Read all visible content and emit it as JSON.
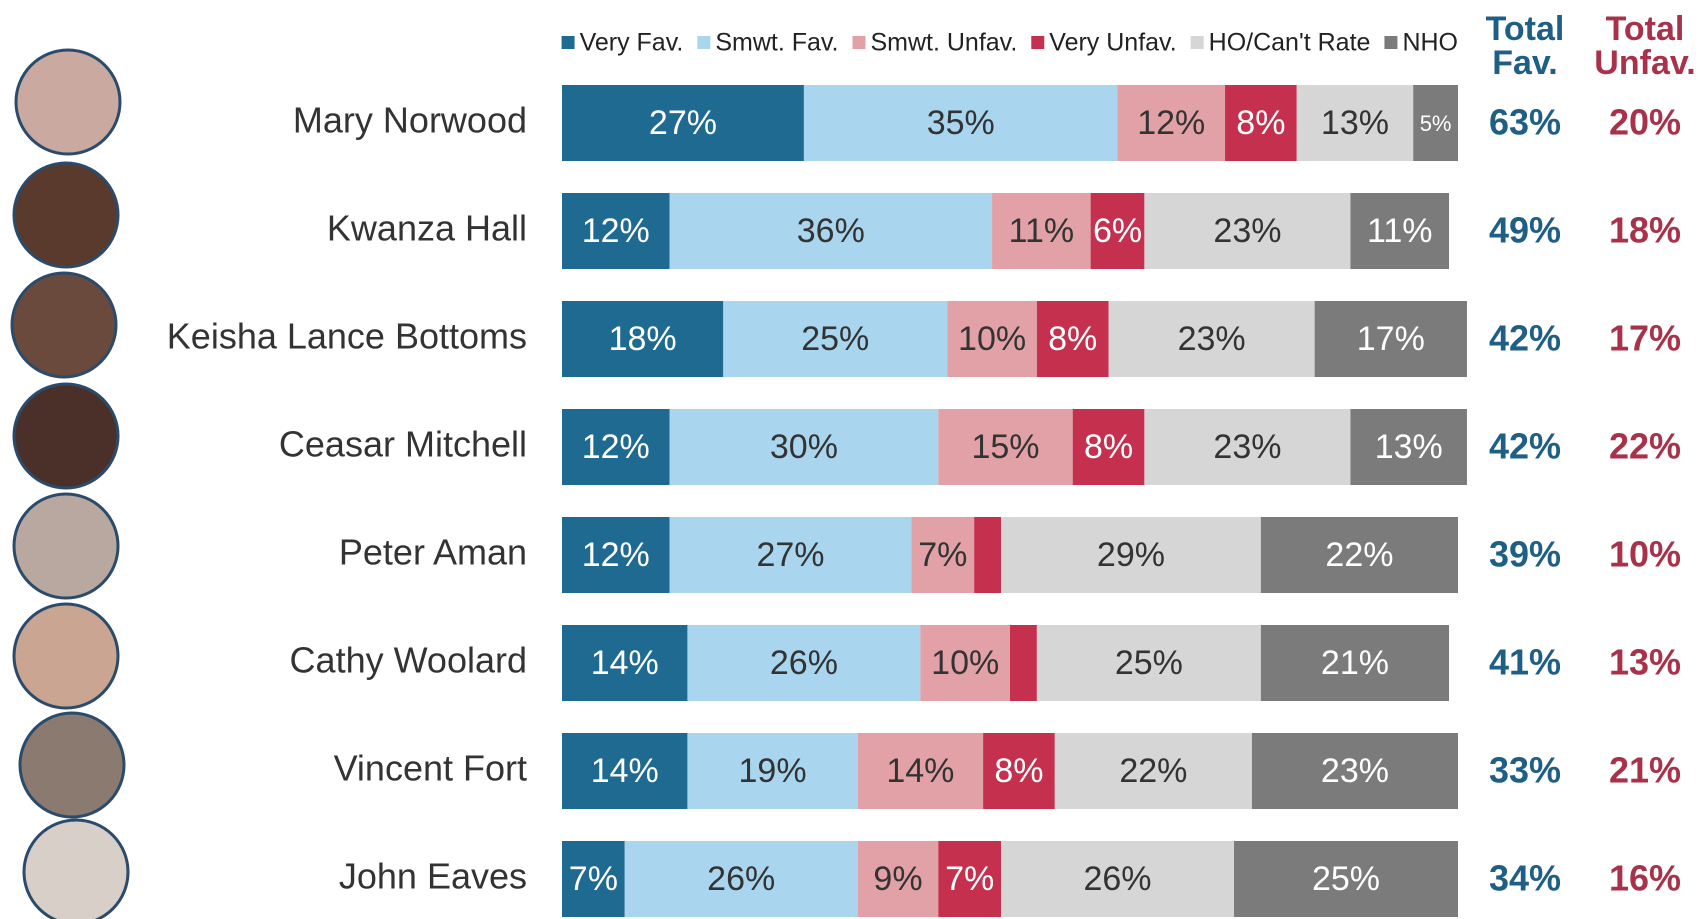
{
  "chart_data": {
    "type": "stacked-bar-horizontal",
    "categories": [
      "Mary Norwood",
      "Kwanza Hall",
      "Keisha Lance Bottoms",
      "Ceasar Mitchell",
      "Peter Aman",
      "Cathy Woolard",
      "Vincent Fort",
      "John Eaves"
    ],
    "series": [
      {
        "name": "Very Fav.",
        "color": "#1f6a91",
        "values": [
          27,
          12,
          18,
          12,
          12,
          14,
          14,
          7
        ],
        "value_labels": [
          "27%",
          "12%",
          "18%",
          "12%",
          "12%",
          "14%",
          "14%",
          "7%"
        ]
      },
      {
        "name": "Smwt. Fav.",
        "color": "#a9d6ee",
        "values": [
          35,
          36,
          25,
          30,
          27,
          26,
          19,
          26
        ],
        "value_labels": [
          "35%",
          "36%",
          "25%",
          "30%",
          "27%",
          "26%",
          "19%",
          "26%"
        ]
      },
      {
        "name": "Smwt. Unfav.",
        "color": "#e2a1a6",
        "values": [
          12,
          11,
          10,
          15,
          7,
          10,
          14,
          9
        ],
        "value_labels": [
          "12%",
          "11%",
          "10%",
          "15%",
          "7%",
          "10%",
          "14%",
          "9%"
        ]
      },
      {
        "name": "Very Unfav.",
        "color": "#c4304e",
        "values": [
          8,
          6,
          8,
          8,
          3,
          3,
          8,
          7
        ],
        "value_labels": [
          "8%",
          "6%",
          "8%",
          "8%",
          null,
          null,
          "8%",
          "7%"
        ]
      },
      {
        "name": "HO/Can't Rate",
        "color": "#d6d6d6",
        "values": [
          13,
          23,
          23,
          23,
          29,
          25,
          22,
          26
        ],
        "value_labels": [
          "13%",
          "23%",
          "23%",
          "23%",
          "29%",
          "25%",
          "22%",
          "26%"
        ]
      },
      {
        "name": "NHO",
        "color": "#7b7b7b",
        "values": [
          5,
          11,
          17,
          13,
          22,
          21,
          23,
          25
        ],
        "value_labels": [
          "5%",
          "11%",
          "17%",
          "13%",
          "22%",
          "21%",
          "23%",
          "25%"
        ]
      }
    ],
    "totals": [
      {
        "name": "Total Fav.",
        "color": "#1f5f85",
        "values": [
          63,
          49,
          42,
          42,
          39,
          41,
          33,
          34
        ],
        "value_labels": [
          "63%",
          "49%",
          "42%",
          "42%",
          "39%",
          "41%",
          "33%",
          "34%"
        ]
      },
      {
        "name": "Total Unfav.",
        "color": "#a8324a",
        "values": [
          20,
          18,
          17,
          22,
          10,
          13,
          21,
          16
        ],
        "value_labels": [
          "20%",
          "18%",
          "17%",
          "22%",
          "10%",
          "13%",
          "21%",
          "16%"
        ]
      }
    ],
    "xlim": [
      0,
      100
    ],
    "legend": "top"
  }
}
